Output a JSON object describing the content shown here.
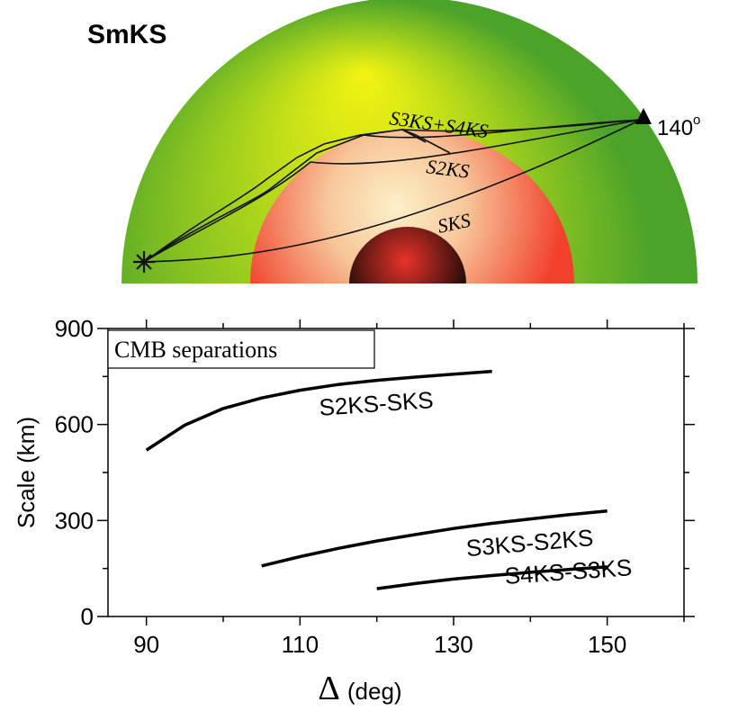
{
  "diagram": {
    "title": "SmKS",
    "receiver_label": "140",
    "receiver_label_sup": "o",
    "phase_labels": [
      "S3KS+S4KS",
      "S2KS",
      "SKS"
    ],
    "colors": {
      "mantle_outer": "#4ca32a",
      "mantle_inner": "#f2f312",
      "outer_core": "#f1402c",
      "outer_core_inner": "#fdf0c8",
      "inner_core": "#1a0a07",
      "inner_core_glow": "#e8332a",
      "ray": "#111111"
    }
  },
  "chart_data": {
    "type": "line",
    "title": "",
    "box_label": "CMB separations",
    "xlabel_symbol": "Δ",
    "xlabel": "(deg)",
    "ylabel": "Scale (km)",
    "xlim": [
      85,
      160
    ],
    "ylim": [
      0,
      900
    ],
    "xticks": [
      90,
      110,
      130,
      150
    ],
    "yticks": [
      0,
      300,
      600,
      900
    ],
    "grid": false,
    "series": [
      {
        "name": "S2KS-SKS",
        "x": [
          90,
          95,
          100,
          105,
          110,
          115,
          120,
          125,
          130,
          135
        ],
        "y": [
          520,
          598,
          650,
          683,
          707,
          725,
          738,
          748,
          757,
          766
        ]
      },
      {
        "name": "S3KS-S2KS",
        "x": [
          105,
          110,
          115,
          120,
          125,
          130,
          135,
          140,
          145,
          150
        ],
        "y": [
          158,
          187,
          213,
          236,
          256,
          275,
          291,
          305,
          318,
          330
        ]
      },
      {
        "name": "S4KS-S3KS",
        "x": [
          120,
          125,
          130,
          135,
          140,
          145,
          150
        ],
        "y": [
          87,
          103,
          117,
          128,
          138,
          147,
          155
        ]
      }
    ]
  }
}
